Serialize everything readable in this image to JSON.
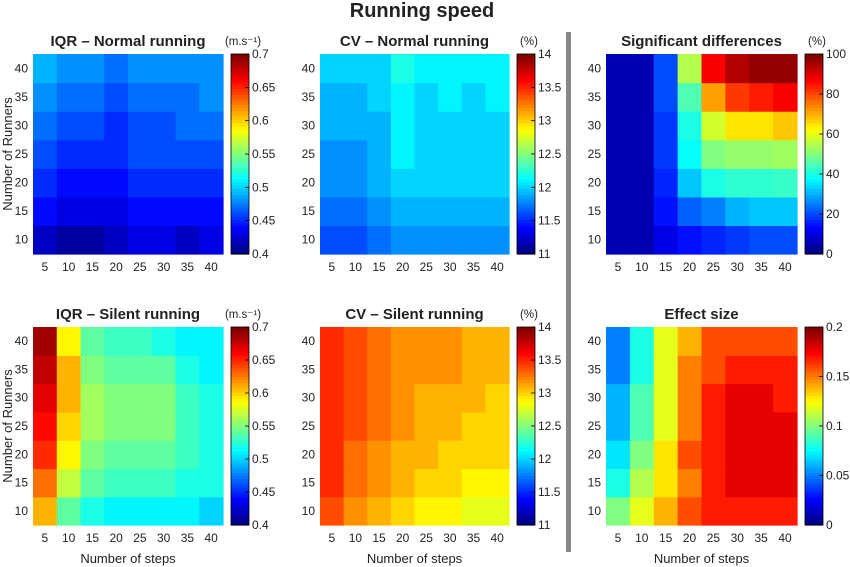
{
  "figure_title": "Running speed",
  "colors": {
    "separator": "#888888",
    "axis": "#000000"
  },
  "chart_data": [
    {
      "type": "heatmap",
      "title": "IQR – Normal running",
      "unit": "(m.s⁻¹)",
      "xlabel": "",
      "ylabel": "Number of Runners",
      "x": [
        5,
        10,
        15,
        20,
        25,
        30,
        35,
        40
      ],
      "y": [
        10,
        15,
        20,
        25,
        30,
        35,
        40
      ],
      "clim": [
        0.4,
        0.7
      ],
      "colorbar_ticks": [
        "0.4",
        "0.45",
        "0.5",
        "0.55",
        "0.6",
        "0.65",
        "0.7"
      ],
      "z": [
        [
          0.42,
          0.41,
          0.41,
          0.42,
          0.43,
          0.43,
          0.42,
          0.43
        ],
        [
          0.44,
          0.43,
          0.43,
          0.43,
          0.44,
          0.44,
          0.44,
          0.44
        ],
        [
          0.45,
          0.44,
          0.44,
          0.44,
          0.45,
          0.45,
          0.45,
          0.45
        ],
        [
          0.46,
          0.45,
          0.45,
          0.45,
          0.46,
          0.46,
          0.46,
          0.46
        ],
        [
          0.47,
          0.46,
          0.46,
          0.45,
          0.46,
          0.46,
          0.47,
          0.47
        ],
        [
          0.48,
          0.47,
          0.47,
          0.46,
          0.47,
          0.47,
          0.47,
          0.48
        ],
        [
          0.49,
          0.48,
          0.48,
          0.47,
          0.48,
          0.48,
          0.48,
          0.48
        ]
      ]
    },
    {
      "type": "heatmap",
      "title": "CV – Normal running",
      "unit": "(%)",
      "xlabel": "",
      "ylabel": "",
      "x": [
        5,
        10,
        15,
        20,
        25,
        30,
        35,
        40
      ],
      "y": [
        10,
        15,
        20,
        25,
        30,
        35,
        40
      ],
      "clim": [
        11,
        14
      ],
      "colorbar_ticks": [
        "11",
        "11.5",
        "12",
        "12.5",
        "13",
        "13.5",
        "14"
      ],
      "z": [
        [
          11.6,
          11.6,
          11.7,
          11.8,
          11.8,
          11.8,
          11.8,
          11.8
        ],
        [
          11.7,
          11.7,
          11.8,
          11.9,
          11.9,
          11.9,
          11.9,
          11.9
        ],
        [
          11.8,
          11.8,
          11.9,
          12.0,
          12.0,
          12.0,
          12.0,
          12.0
        ],
        [
          11.8,
          11.8,
          11.9,
          12.1,
          12.0,
          12.0,
          12.0,
          12.0
        ],
        [
          11.9,
          11.9,
          11.9,
          12.1,
          12.0,
          12.0,
          12.0,
          12.0
        ],
        [
          11.9,
          11.9,
          12.0,
          12.1,
          12.0,
          12.1,
          12.0,
          12.1
        ],
        [
          12.0,
          12.0,
          12.0,
          12.2,
          12.1,
          12.1,
          12.1,
          12.1
        ]
      ]
    },
    {
      "type": "heatmap",
      "title": "Significant differences",
      "unit": "(%)",
      "xlabel": "",
      "ylabel": "",
      "x": [
        5,
        10,
        15,
        20,
        25,
        30,
        35,
        40
      ],
      "y": [
        10,
        15,
        20,
        25,
        30,
        35,
        40
      ],
      "clim": [
        0,
        100
      ],
      "colorbar_ticks": [
        "0",
        "20",
        "40",
        "60",
        "80",
        "100"
      ],
      "z": [
        [
          5,
          5,
          10,
          14,
          16,
          18,
          20,
          20
        ],
        [
          5,
          5,
          14,
          22,
          25,
          30,
          32,
          32
        ],
        [
          5,
          5,
          16,
          32,
          40,
          42,
          42,
          43
        ],
        [
          5,
          5,
          18,
          38,
          50,
          52,
          52,
          53
        ],
        [
          5,
          5,
          18,
          40,
          58,
          65,
          65,
          68
        ],
        [
          5,
          5,
          20,
          45,
          72,
          82,
          85,
          88
        ],
        [
          5,
          5,
          20,
          55,
          88,
          95,
          98,
          98
        ]
      ]
    },
    {
      "type": "heatmap",
      "title": "IQR – Silent running",
      "unit": "(m.s⁻¹)",
      "xlabel": "Number of steps",
      "ylabel": "Number of Runners",
      "x": [
        5,
        10,
        15,
        20,
        25,
        30,
        35,
        40
      ],
      "y": [
        10,
        15,
        20,
        25,
        30,
        35,
        40
      ],
      "clim": [
        0.4,
        0.7
      ],
      "colorbar_ticks": [
        "0.4",
        "0.45",
        "0.5",
        "0.55",
        "0.6",
        "0.65",
        "0.7"
      ],
      "z": [
        [
          0.61,
          0.54,
          0.52,
          0.51,
          0.51,
          0.51,
          0.51,
          0.5
        ],
        [
          0.63,
          0.57,
          0.54,
          0.53,
          0.53,
          0.53,
          0.52,
          0.52
        ],
        [
          0.65,
          0.59,
          0.55,
          0.54,
          0.54,
          0.54,
          0.53,
          0.52
        ],
        [
          0.66,
          0.6,
          0.56,
          0.55,
          0.55,
          0.55,
          0.53,
          0.52
        ],
        [
          0.67,
          0.61,
          0.56,
          0.55,
          0.55,
          0.55,
          0.53,
          0.52
        ],
        [
          0.68,
          0.61,
          0.55,
          0.54,
          0.54,
          0.54,
          0.52,
          0.51
        ],
        [
          0.69,
          0.59,
          0.54,
          0.53,
          0.53,
          0.52,
          0.51,
          0.51
        ]
      ]
    },
    {
      "type": "heatmap",
      "title": "CV – Silent running",
      "unit": "(%)",
      "xlabel": "Number of steps",
      "ylabel": "",
      "x": [
        5,
        10,
        15,
        20,
        25,
        30,
        35,
        40
      ],
      "y": [
        10,
        15,
        20,
        25,
        30,
        35,
        40
      ],
      "clim": [
        11,
        14
      ],
      "colorbar_ticks": [
        "11",
        "11.5",
        "12",
        "12.5",
        "13",
        "13.5",
        "14"
      ],
      "z": [
        [
          13.4,
          13.2,
          13.1,
          13.0,
          12.9,
          12.9,
          12.8,
          12.8
        ],
        [
          13.5,
          13.3,
          13.2,
          13.1,
          13.0,
          13.0,
          12.9,
          12.9
        ],
        [
          13.5,
          13.3,
          13.2,
          13.1,
          13.1,
          13.0,
          13.0,
          13.0
        ],
        [
          13.5,
          13.4,
          13.3,
          13.2,
          13.1,
          13.1,
          13.0,
          13.0
        ],
        [
          13.5,
          13.4,
          13.3,
          13.2,
          13.1,
          13.1,
          13.1,
          13.0
        ],
        [
          13.5,
          13.4,
          13.3,
          13.2,
          13.2,
          13.2,
          13.1,
          13.1
        ],
        [
          13.5,
          13.4,
          13.3,
          13.2,
          13.2,
          13.2,
          13.1,
          13.1
        ]
      ]
    },
    {
      "type": "heatmap",
      "title": "Effect size",
      "unit": "",
      "xlabel": "Number of steps",
      "ylabel": "",
      "x": [
        5,
        10,
        15,
        20,
        25,
        30,
        35,
        40
      ],
      "y": [
        10,
        15,
        20,
        25,
        30,
        35,
        40
      ],
      "clim": [
        0,
        0.2
      ],
      "colorbar_ticks": [
        "0",
        "0.05",
        "0.1",
        "0.15",
        "0.2"
      ],
      "z": [
        [
          0.1,
          0.12,
          0.14,
          0.16,
          0.17,
          0.17,
          0.17,
          0.17
        ],
        [
          0.08,
          0.11,
          0.13,
          0.15,
          0.17,
          0.18,
          0.18,
          0.18
        ],
        [
          0.07,
          0.1,
          0.13,
          0.16,
          0.17,
          0.18,
          0.18,
          0.18
        ],
        [
          0.06,
          0.09,
          0.12,
          0.15,
          0.17,
          0.18,
          0.18,
          0.18
        ],
        [
          0.06,
          0.09,
          0.12,
          0.15,
          0.17,
          0.18,
          0.18,
          0.17
        ],
        [
          0.05,
          0.08,
          0.12,
          0.15,
          0.16,
          0.17,
          0.17,
          0.17
        ],
        [
          0.05,
          0.08,
          0.12,
          0.14,
          0.16,
          0.16,
          0.16,
          0.16
        ]
      ]
    }
  ]
}
